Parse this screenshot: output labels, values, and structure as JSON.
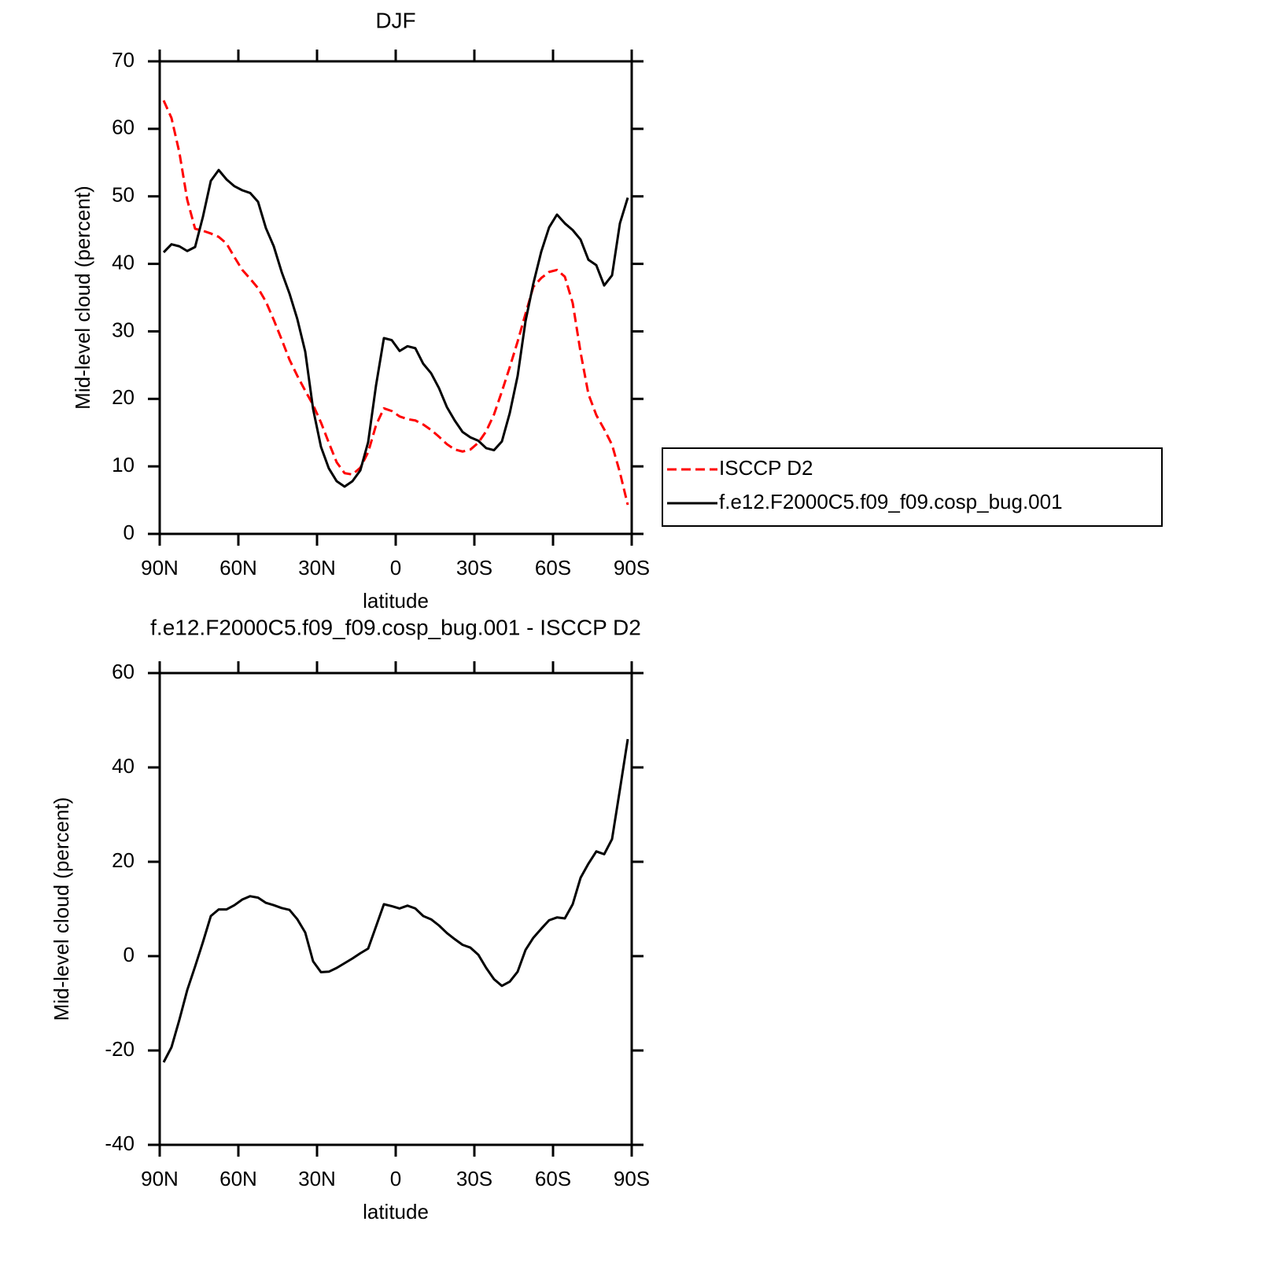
{
  "chart_data": [
    {
      "type": "line",
      "title": "DJF",
      "xlabel": "latitude",
      "ylabel": "Mid-level cloud (percent)",
      "x": [
        88.5,
        85.5,
        82.5,
        79.5,
        76.5,
        73.5,
        70.5,
        67.5,
        64.5,
        61.5,
        58.5,
        55.5,
        52.5,
        49.5,
        46.5,
        43.5,
        40.5,
        37.5,
        34.5,
        31.5,
        28.5,
        25.5,
        22.5,
        19.5,
        16.5,
        13.5,
        10.5,
        7.5,
        4.5,
        1.5,
        -1.5,
        -4.5,
        -7.5,
        -10.5,
        -13.5,
        -16.5,
        -19.5,
        -22.5,
        -25.5,
        -28.5,
        -31.5,
        -34.5,
        -37.5,
        -40.5,
        -43.5,
        -46.5,
        -49.5,
        -52.5,
        -55.5,
        -58.5,
        -61.5,
        -64.5,
        -67.5,
        -70.5,
        -73.5,
        -76.5,
        -79.5,
        -82.5,
        -85.5,
        -88.5
      ],
      "series": [
        {
          "name": "ISCCP D2",
          "color": "#ff0000",
          "style": "dashed",
          "values": [
            64.2,
            61.6,
            56.5,
            49.5,
            45.2,
            44.9,
            44.5,
            44.0,
            43.0,
            41.0,
            39.1,
            37.8,
            36.4,
            34.4,
            31.7,
            28.8,
            25.8,
            23.4,
            21.2,
            19.1,
            16.5,
            13.5,
            10.6,
            9.0,
            8.8,
            9.8,
            12.1,
            16.1,
            18.6,
            18.2,
            17.4,
            17.0,
            16.8,
            16.2,
            15.4,
            14.4,
            13.3,
            12.5,
            12.2,
            12.5,
            13.5,
            15.2,
            17.7,
            21.1,
            24.7,
            28.5,
            32.6,
            36.6,
            37.9,
            38.8,
            39.1,
            38.1,
            34.2,
            26.9,
            20.7,
            17.6,
            15.5,
            13.2,
            9.1,
            4.3
          ]
        },
        {
          "name": "f.e12.F2000C5.f09_f09.cosp_bug.001",
          "color": "#000000",
          "style": "solid",
          "values": [
            41.7,
            42.9,
            42.6,
            41.9,
            42.5,
            47.0,
            52.3,
            53.9,
            52.5,
            51.5,
            50.9,
            50.5,
            49.2,
            45.3,
            42.6,
            38.8,
            35.6,
            31.8,
            27.0,
            18.5,
            12.9,
            9.7,
            7.8,
            7.0,
            7.8,
            9.4,
            13.6,
            22.0,
            29.0,
            28.7,
            27.1,
            27.8,
            27.5,
            25.2,
            23.8,
            21.6,
            18.8,
            16.8,
            15.1,
            14.3,
            13.8,
            12.7,
            12.4,
            13.7,
            17.9,
            23.4,
            31.5,
            37.1,
            41.8,
            45.4,
            47.3,
            46.0,
            45.0,
            43.6,
            40.6,
            39.8,
            36.8,
            38.3,
            46.0,
            49.8
          ]
        }
      ],
      "xlim": [
        90,
        -90
      ],
      "xticks": [
        {
          "value": 90,
          "label": "90N"
        },
        {
          "value": 60,
          "label": "60N"
        },
        {
          "value": 30,
          "label": "30N"
        },
        0,
        {
          "value": -30,
          "label": "30S"
        },
        {
          "value": -60,
          "label": "60S"
        },
        {
          "value": -90,
          "label": "90S"
        }
      ],
      "ylim": [
        0,
        70
      ],
      "yticks": [
        0,
        10,
        20,
        30,
        40,
        50,
        60,
        70
      ],
      "legend": "outside-right"
    },
    {
      "type": "line",
      "title": "f.e12.F2000C5.f09_f09.cosp_bug.001 - ISCCP D2",
      "xlabel": "latitude",
      "ylabel": "Mid-level cloud (percent)",
      "x": [
        88.5,
        85.5,
        82.5,
        79.5,
        76.5,
        73.5,
        70.5,
        67.5,
        64.5,
        61.5,
        58.5,
        55.5,
        52.5,
        49.5,
        46.5,
        43.5,
        40.5,
        37.5,
        34.5,
        31.5,
        28.5,
        25.5,
        22.5,
        19.5,
        16.5,
        13.5,
        10.5,
        7.5,
        4.5,
        1.5,
        -1.5,
        -4.5,
        -7.5,
        -10.5,
        -13.5,
        -16.5,
        -19.5,
        -22.5,
        -25.5,
        -28.5,
        -31.5,
        -34.5,
        -37.5,
        -40.5,
        -43.5,
        -46.5,
        -49.5,
        -52.5,
        -55.5,
        -58.5,
        -61.5,
        -64.5,
        -67.5,
        -70.5,
        -73.5,
        -76.5,
        -79.5,
        -82.5,
        -85.5,
        -88.5
      ],
      "series": [
        {
          "color": "#000000",
          "style": "solid",
          "values": [
            -22.5,
            -19.3,
            -13.5,
            -7.2,
            -2.2,
            3.0,
            8.5,
            9.9,
            9.9,
            10.8,
            12.0,
            12.7,
            12.4,
            11.3,
            10.8,
            10.2,
            9.8,
            7.8,
            5.0,
            -1.1,
            -3.4,
            -3.3,
            -2.5,
            -1.5,
            -0.5,
            0.6,
            1.6,
            6.3,
            11.0,
            10.6,
            10.1,
            10.7,
            10.1,
            8.5,
            7.8,
            6.5,
            4.9,
            3.6,
            2.4,
            1.8,
            0.3,
            -2.5,
            -4.9,
            -6.3,
            -5.4,
            -3.3,
            1.3,
            3.9,
            5.8,
            7.6,
            8.2,
            8.0,
            11.0,
            16.6,
            19.6,
            22.2,
            21.6,
            24.8,
            35.3,
            46
          ]
        }
      ],
      "xlim": [
        90,
        -90
      ],
      "xticks": [
        {
          "value": 90,
          "label": "90N"
        },
        {
          "value": 60,
          "label": "60N"
        },
        {
          "value": 30,
          "label": "30N"
        },
        0,
        {
          "value": -30,
          "label": "30S"
        },
        {
          "value": -60,
          "label": "60S"
        },
        {
          "value": -90,
          "label": "90S"
        }
      ],
      "ylim": [
        -40,
        60
      ],
      "yticks": [
        -40,
        -20,
        0,
        20,
        40,
        60
      ]
    }
  ]
}
